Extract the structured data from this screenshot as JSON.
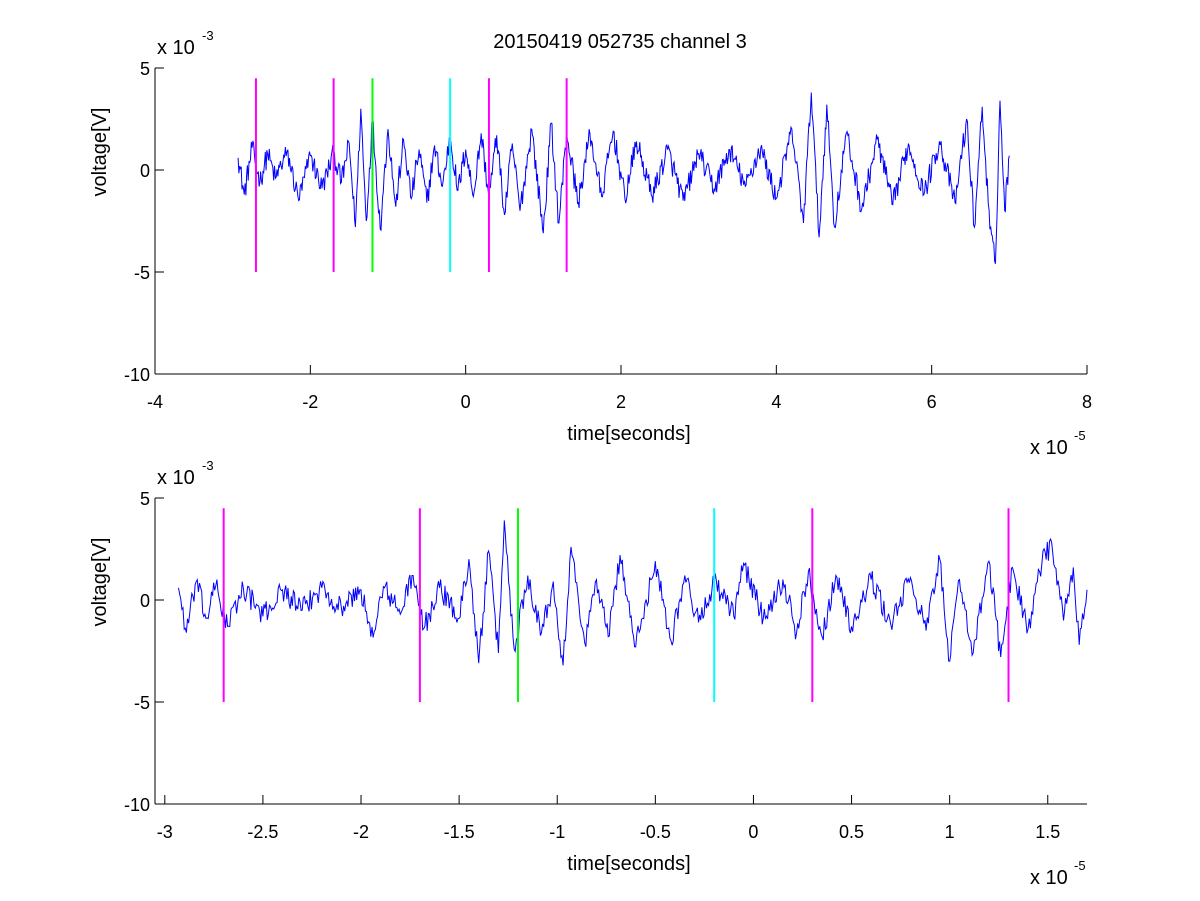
{
  "figure": {
    "title": "20150419 052735 channel 3"
  },
  "chart_data": [
    {
      "type": "line",
      "title": "20150419 052735 channel 3",
      "xlabel": "time[seconds]",
      "ylabel": "voltage[V]",
      "x_scale_label": {
        "base": "x 10",
        "exp": "-5"
      },
      "y_scale_label": {
        "base": "x 10",
        "exp": "-3"
      },
      "xlim": [
        -4,
        8
      ],
      "ylim": [
        -10,
        5
      ],
      "x_unit_multiplier": 1e-05,
      "y_unit_multiplier": 0.001,
      "xticks": [
        -4,
        -2,
        0,
        2,
        4,
        6,
        8
      ],
      "xtick_labels": [
        "-4",
        "-2",
        "0",
        "2",
        "4",
        "6",
        "8"
      ],
      "yticks": [
        -10,
        -5,
        0,
        5
      ],
      "ytick_labels": [
        "-10",
        "-5",
        "0",
        "5"
      ],
      "grid": false,
      "signal": {
        "color": "#0000ff",
        "x_start": -2.93,
        "x_end": 7.0,
        "points": [
          [
            -2.93,
            0.6
          ],
          [
            -2.85,
            -1.2
          ],
          [
            -2.75,
            1.1
          ],
          [
            -2.65,
            -0.6
          ],
          [
            -2.55,
            0.8
          ],
          [
            -2.45,
            -0.4
          ],
          [
            -2.3,
            0.9
          ],
          [
            -2.15,
            -1.5
          ],
          [
            -2.0,
            0.7
          ],
          [
            -1.85,
            -0.9
          ],
          [
            -1.7,
            0.8
          ],
          [
            -1.6,
            -0.6
          ],
          [
            -1.5,
            1.3
          ],
          [
            -1.42,
            -2.8
          ],
          [
            -1.35,
            3.0
          ],
          [
            -1.28,
            -2.5
          ],
          [
            -1.2,
            2.5
          ],
          [
            -1.1,
            -2.9
          ],
          [
            -1.0,
            2.0
          ],
          [
            -0.9,
            -1.8
          ],
          [
            -0.8,
            1.5
          ],
          [
            -0.7,
            -1.4
          ],
          [
            -0.6,
            1.0
          ],
          [
            -0.5,
            -1.6
          ],
          [
            -0.4,
            1.2
          ],
          [
            -0.3,
            -0.8
          ],
          [
            -0.2,
            1.6
          ],
          [
            -0.1,
            -1.0
          ],
          [
            0.0,
            1.0
          ],
          [
            0.1,
            -1.3
          ],
          [
            0.2,
            1.8
          ],
          [
            0.3,
            -1.4
          ],
          [
            0.4,
            1.7
          ],
          [
            0.5,
            -2.2
          ],
          [
            0.6,
            1.3
          ],
          [
            0.7,
            -2.0
          ],
          [
            0.85,
            2.0
          ],
          [
            1.0,
            -3.1
          ],
          [
            1.1,
            2.3
          ],
          [
            1.2,
            -2.6
          ],
          [
            1.3,
            1.8
          ],
          [
            1.45,
            -1.6
          ],
          [
            1.6,
            1.8
          ],
          [
            1.75,
            -1.3
          ],
          [
            1.9,
            1.9
          ],
          [
            2.05,
            -1.4
          ],
          [
            2.2,
            1.4
          ],
          [
            2.4,
            -1.3
          ],
          [
            2.6,
            1.0
          ],
          [
            2.8,
            -1.5
          ],
          [
            3.0,
            0.8
          ],
          [
            3.2,
            -0.9
          ],
          [
            3.4,
            1.0
          ],
          [
            3.6,
            -0.8
          ],
          [
            3.8,
            1.1
          ],
          [
            4.0,
            -1.4
          ],
          [
            4.2,
            2.0
          ],
          [
            4.35,
            -2.6
          ],
          [
            4.45,
            3.8
          ],
          [
            4.55,
            -3.3
          ],
          [
            4.65,
            3.2
          ],
          [
            4.75,
            -2.8
          ],
          [
            4.9,
            1.8
          ],
          [
            5.1,
            -1.9
          ],
          [
            5.3,
            1.5
          ],
          [
            5.5,
            -1.7
          ],
          [
            5.7,
            1.3
          ],
          [
            5.9,
            -1.2
          ],
          [
            6.1,
            1.4
          ],
          [
            6.3,
            -1.6
          ],
          [
            6.45,
            2.5
          ],
          [
            6.55,
            -2.8
          ],
          [
            6.65,
            3.1
          ],
          [
            6.75,
            -2.9
          ],
          [
            6.82,
            -4.6
          ],
          [
            6.88,
            3.4
          ],
          [
            6.94,
            -2.0
          ],
          [
            7.0,
            0.7
          ]
        ]
      },
      "markers": [
        {
          "x": -2.7,
          "color": "#ff00ff",
          "y_range": [
            -5,
            4.5
          ]
        },
        {
          "x": -1.7,
          "color": "#ff00ff",
          "y_range": [
            -5,
            4.5
          ]
        },
        {
          "x": -1.2,
          "color": "#00ff00",
          "y_range": [
            -5,
            4.5
          ]
        },
        {
          "x": -0.2,
          "color": "#00ffff",
          "y_range": [
            -5,
            4.5
          ]
        },
        {
          "x": 0.3,
          "color": "#ff00ff",
          "y_range": [
            -5,
            4.5
          ]
        },
        {
          "x": 1.3,
          "color": "#ff00ff",
          "y_range": [
            -5,
            4.5
          ]
        }
      ]
    },
    {
      "type": "line",
      "title": "",
      "xlabel": "time[seconds]",
      "ylabel": "voltage[V]",
      "x_scale_label": {
        "base": "x 10",
        "exp": "-5"
      },
      "y_scale_label": {
        "base": "x 10",
        "exp": "-3"
      },
      "xlim": [
        -3.05,
        1.7
      ],
      "ylim": [
        -10,
        5
      ],
      "x_unit_multiplier": 1e-05,
      "y_unit_multiplier": 0.001,
      "xticks": [
        -3,
        -2.5,
        -2,
        -1.5,
        -1,
        -0.5,
        0,
        0.5,
        1,
        1.5
      ],
      "xtick_labels": [
        "-3",
        "-2.5",
        "-2",
        "-1.5",
        "-1",
        "-0.5",
        "0",
        "0.5",
        "1",
        "1.5"
      ],
      "yticks": [
        -10,
        -5,
        0,
        5
      ],
      "ytick_labels": [
        "-10",
        "-5",
        "0",
        "5"
      ],
      "grid": false,
      "signal": {
        "color": "#0000ff",
        "x_start": -2.93,
        "x_end": 1.7,
        "points": [
          [
            -2.93,
            0.6
          ],
          [
            -2.89,
            -1.6
          ],
          [
            -2.84,
            0.9
          ],
          [
            -2.79,
            -0.9
          ],
          [
            -2.74,
            0.7
          ],
          [
            -2.68,
            -1.3
          ],
          [
            -2.6,
            0.6
          ],
          [
            -2.5,
            -0.8
          ],
          [
            -2.4,
            0.5
          ],
          [
            -2.3,
            -0.5
          ],
          [
            -2.2,
            0.6
          ],
          [
            -2.1,
            -0.4
          ],
          [
            -2.0,
            0.5
          ],
          [
            -1.95,
            -1.8
          ],
          [
            -1.88,
            0.6
          ],
          [
            -1.8,
            -0.7
          ],
          [
            -1.74,
            1.2
          ],
          [
            -1.68,
            -1.4
          ],
          [
            -1.6,
            0.6
          ],
          [
            -1.5,
            -0.9
          ],
          [
            -1.45,
            2.0
          ],
          [
            -1.4,
            -3.1
          ],
          [
            -1.35,
            2.4
          ],
          [
            -1.3,
            -2.6
          ],
          [
            -1.27,
            3.9
          ],
          [
            -1.22,
            -2.4
          ],
          [
            -1.15,
            1.2
          ],
          [
            -1.08,
            -1.6
          ],
          [
            -1.02,
            0.9
          ],
          [
            -0.97,
            -3.2
          ],
          [
            -0.93,
            2.6
          ],
          [
            -0.86,
            -2.1
          ],
          [
            -0.8,
            1.0
          ],
          [
            -0.74,
            -1.8
          ],
          [
            -0.68,
            2.2
          ],
          [
            -0.6,
            -2.3
          ],
          [
            -0.5,
            1.9
          ],
          [
            -0.42,
            -2.0
          ],
          [
            -0.35,
            1.2
          ],
          [
            -0.28,
            -1.1
          ],
          [
            -0.2,
            0.9
          ],
          [
            -0.1,
            -0.8
          ],
          [
            -0.05,
            1.8
          ],
          [
            0.05,
            -0.9
          ],
          [
            0.15,
            1.0
          ],
          [
            0.22,
            -1.6
          ],
          [
            0.28,
            1.4
          ],
          [
            0.35,
            -1.8
          ],
          [
            0.42,
            1.2
          ],
          [
            0.5,
            -1.3
          ],
          [
            0.6,
            1.0
          ],
          [
            0.7,
            -1.2
          ],
          [
            0.8,
            1.1
          ],
          [
            0.88,
            -1.5
          ],
          [
            0.95,
            2.0
          ],
          [
            1.0,
            -3.0
          ],
          [
            1.05,
            1.0
          ],
          [
            1.12,
            -2.6
          ],
          [
            1.2,
            1.9
          ],
          [
            1.26,
            -2.8
          ],
          [
            1.32,
            1.6
          ],
          [
            1.4,
            -1.4
          ],
          [
            1.47,
            1.8
          ],
          [
            1.52,
            2.8
          ],
          [
            1.58,
            -1.0
          ],
          [
            1.63,
            1.6
          ],
          [
            1.66,
            -2.2
          ],
          [
            1.7,
            0.5
          ]
        ]
      },
      "markers": [
        {
          "x": -2.7,
          "color": "#ff00ff",
          "y_range": [
            -5,
            4.5
          ]
        },
        {
          "x": -1.7,
          "color": "#ff00ff",
          "y_range": [
            -5,
            4.5
          ]
        },
        {
          "x": -1.2,
          "color": "#00ff00",
          "y_range": [
            -5,
            4.5
          ]
        },
        {
          "x": -0.2,
          "color": "#00ffff",
          "y_range": [
            -5,
            4.5
          ]
        },
        {
          "x": 0.3,
          "color": "#ff00ff",
          "y_range": [
            -5,
            4.5
          ]
        },
        {
          "x": 1.3,
          "color": "#ff00ff",
          "y_range": [
            -5,
            4.5
          ]
        }
      ]
    }
  ]
}
